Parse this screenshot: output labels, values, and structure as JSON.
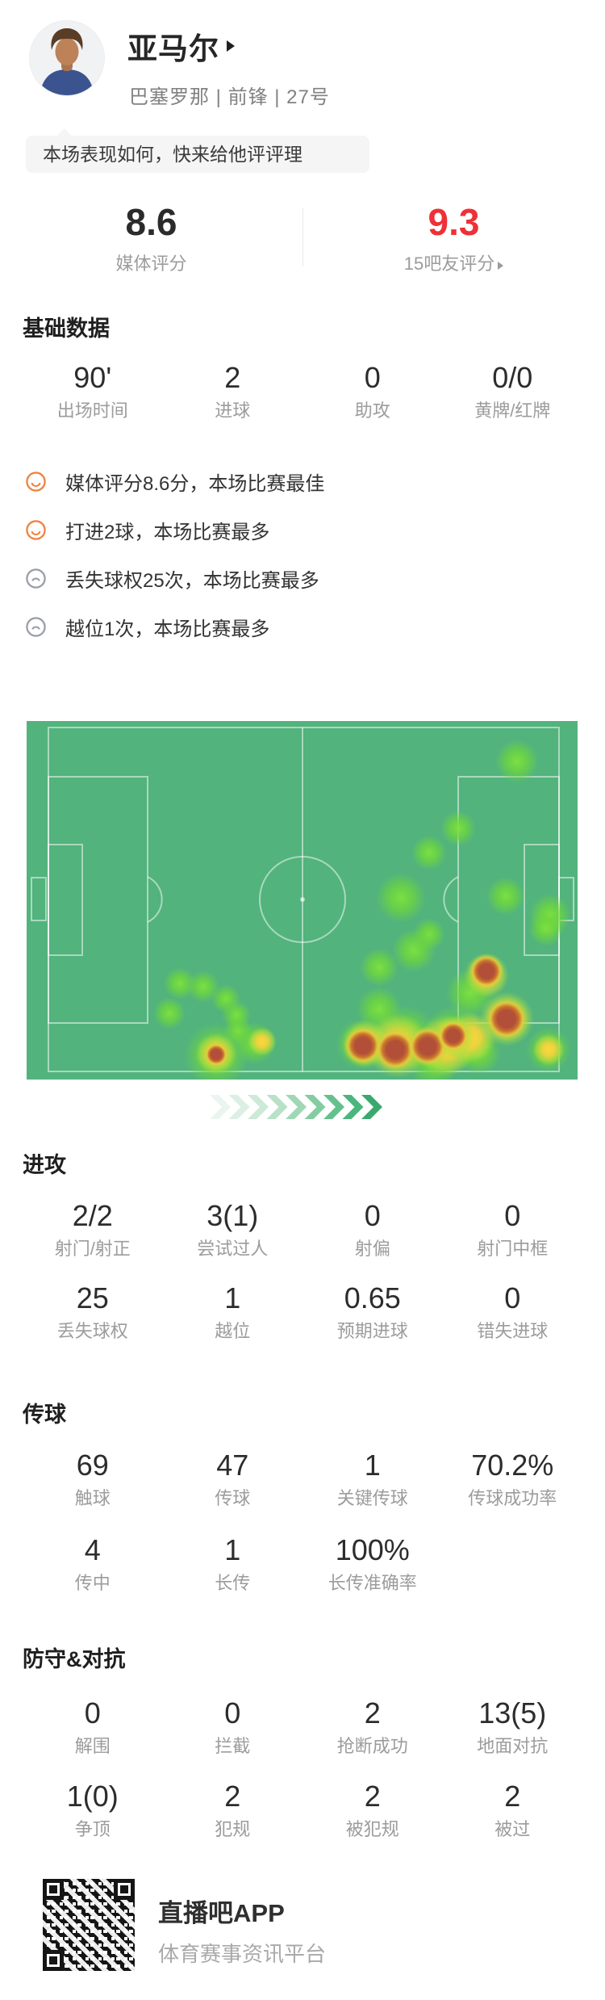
{
  "player": {
    "name": "亚马尔",
    "meta": "巴塞罗那 | 前锋 | 27号",
    "prompt": "本场表现如何，快来给他评评理"
  },
  "ratings": {
    "media": {
      "value": "8.6",
      "label": "媒体评分"
    },
    "fans": {
      "value": "9.3",
      "label": "15吧友评分"
    },
    "accent_red": "#ee3038"
  },
  "sections": {
    "basic": {
      "title": "基础数据",
      "stats": [
        {
          "value": "90'",
          "label": "出场时间"
        },
        {
          "value": "2",
          "label": "进球"
        },
        {
          "value": "0",
          "label": "助攻"
        },
        {
          "value": "0/0",
          "label": "黄牌/红牌"
        }
      ]
    },
    "highlights": [
      {
        "type": "smile",
        "icon": "smile-icon",
        "text": "媒体评分8.6分，本场比赛最佳"
      },
      {
        "type": "smile",
        "icon": "smile-icon",
        "text": "打进2球，本场比赛最多"
      },
      {
        "type": "frown",
        "icon": "frown-icon",
        "text": "丢失球权25次，本场比赛最多"
      },
      {
        "type": "frown",
        "icon": "frown-icon",
        "text": "越位1次，本场比赛最多"
      }
    ],
    "attack": {
      "title": "进攻",
      "rows": [
        [
          {
            "value": "2/2",
            "label": "射门/射正"
          },
          {
            "value": "3(1)",
            "label": "尝试过人"
          },
          {
            "value": "0",
            "label": "射偏"
          },
          {
            "value": "0",
            "label": "射门中框"
          }
        ],
        [
          {
            "value": "25",
            "label": "丢失球权"
          },
          {
            "value": "1",
            "label": "越位"
          },
          {
            "value": "0.65",
            "label": "预期进球"
          },
          {
            "value": "0",
            "label": "错失进球"
          }
        ]
      ]
    },
    "passing": {
      "title": "传球",
      "rows": [
        [
          {
            "value": "69",
            "label": "触球"
          },
          {
            "value": "47",
            "label": "传球"
          },
          {
            "value": "1",
            "label": "关键传球"
          },
          {
            "value": "70.2%",
            "label": "传球成功率"
          }
        ],
        [
          {
            "value": "4",
            "label": "传中"
          },
          {
            "value": "1",
            "label": "长传"
          },
          {
            "value": "100%",
            "label": "长传准确率"
          }
        ]
      ]
    },
    "defense": {
      "title": "防守&对抗",
      "rows": [
        [
          {
            "value": "0",
            "label": "解围"
          },
          {
            "value": "0",
            "label": "拦截"
          },
          {
            "value": "2",
            "label": "抢断成功"
          },
          {
            "value": "13(5)",
            "label": "地面对抗"
          }
        ],
        [
          {
            "value": "1(0)",
            "label": "争顶"
          },
          {
            "value": "2",
            "label": "犯规"
          },
          {
            "value": "2",
            "label": "被犯规"
          },
          {
            "value": "2",
            "label": "被过"
          }
        ]
      ]
    }
  },
  "heatmap": {
    "pitch_color": "#52b37d",
    "line_color": "rgba(255,255,255,0.5)",
    "blobs": {
      "green": [
        [
          608,
          50,
          27
        ],
        [
          535,
          133,
          22
        ],
        [
          499,
          163,
          22
        ],
        [
          464,
          219,
          31
        ],
        [
          594,
          217,
          24
        ],
        [
          649,
          240,
          26
        ],
        [
          644,
          257,
          22
        ],
        [
          499,
          264,
          20
        ],
        [
          437,
          305,
          24
        ],
        [
          177,
          362,
          20
        ],
        [
          190,
          325,
          20
        ],
        [
          219,
          329,
          20
        ],
        [
          247,
          344,
          18
        ],
        [
          260,
          364,
          18
        ],
        [
          262,
          384,
          18
        ],
        [
          480,
          284,
          27
        ],
        [
          550,
          337,
          30
        ],
        [
          437,
          357,
          28
        ],
        [
          415,
          400,
          32
        ],
        [
          470,
          392,
          40
        ],
        [
          530,
          392,
          40
        ],
        [
          560,
          410,
          28
        ],
        [
          505,
          422,
          32
        ],
        [
          647,
          407,
          28
        ],
        [
          283,
          399,
          26
        ],
        [
          235,
          414,
          40
        ]
      ],
      "yellow": [
        [
          292,
          397,
          18
        ],
        [
          235,
          412,
          26
        ],
        [
          460,
          402,
          40
        ],
        [
          520,
          402,
          38
        ],
        [
          570,
          315,
          28
        ],
        [
          595,
          369,
          34
        ],
        [
          647,
          407,
          20
        ],
        [
          420,
          400,
          30
        ],
        [
          550,
          392,
          32
        ],
        [
          529,
          391,
          26
        ]
      ],
      "red": [
        [
          417,
          402,
          24
        ],
        [
          457,
          407,
          26
        ],
        [
          497,
          403,
          25
        ],
        [
          529,
          390,
          20
        ],
        [
          570,
          310,
          22
        ],
        [
          595,
          369,
          26
        ],
        [
          235,
          413,
          15
        ]
      ]
    },
    "chevron_colors": [
      "#ebf5ef",
      "#dcefe4",
      "#cde9d8",
      "#b8e1c8",
      "#a0d8b6",
      "#83cda1",
      "#65c18c",
      "#4bb67b",
      "#3ba96e"
    ]
  },
  "footer": {
    "app_name": "直播吧APP",
    "tagline": "体育赛事资讯平台"
  }
}
